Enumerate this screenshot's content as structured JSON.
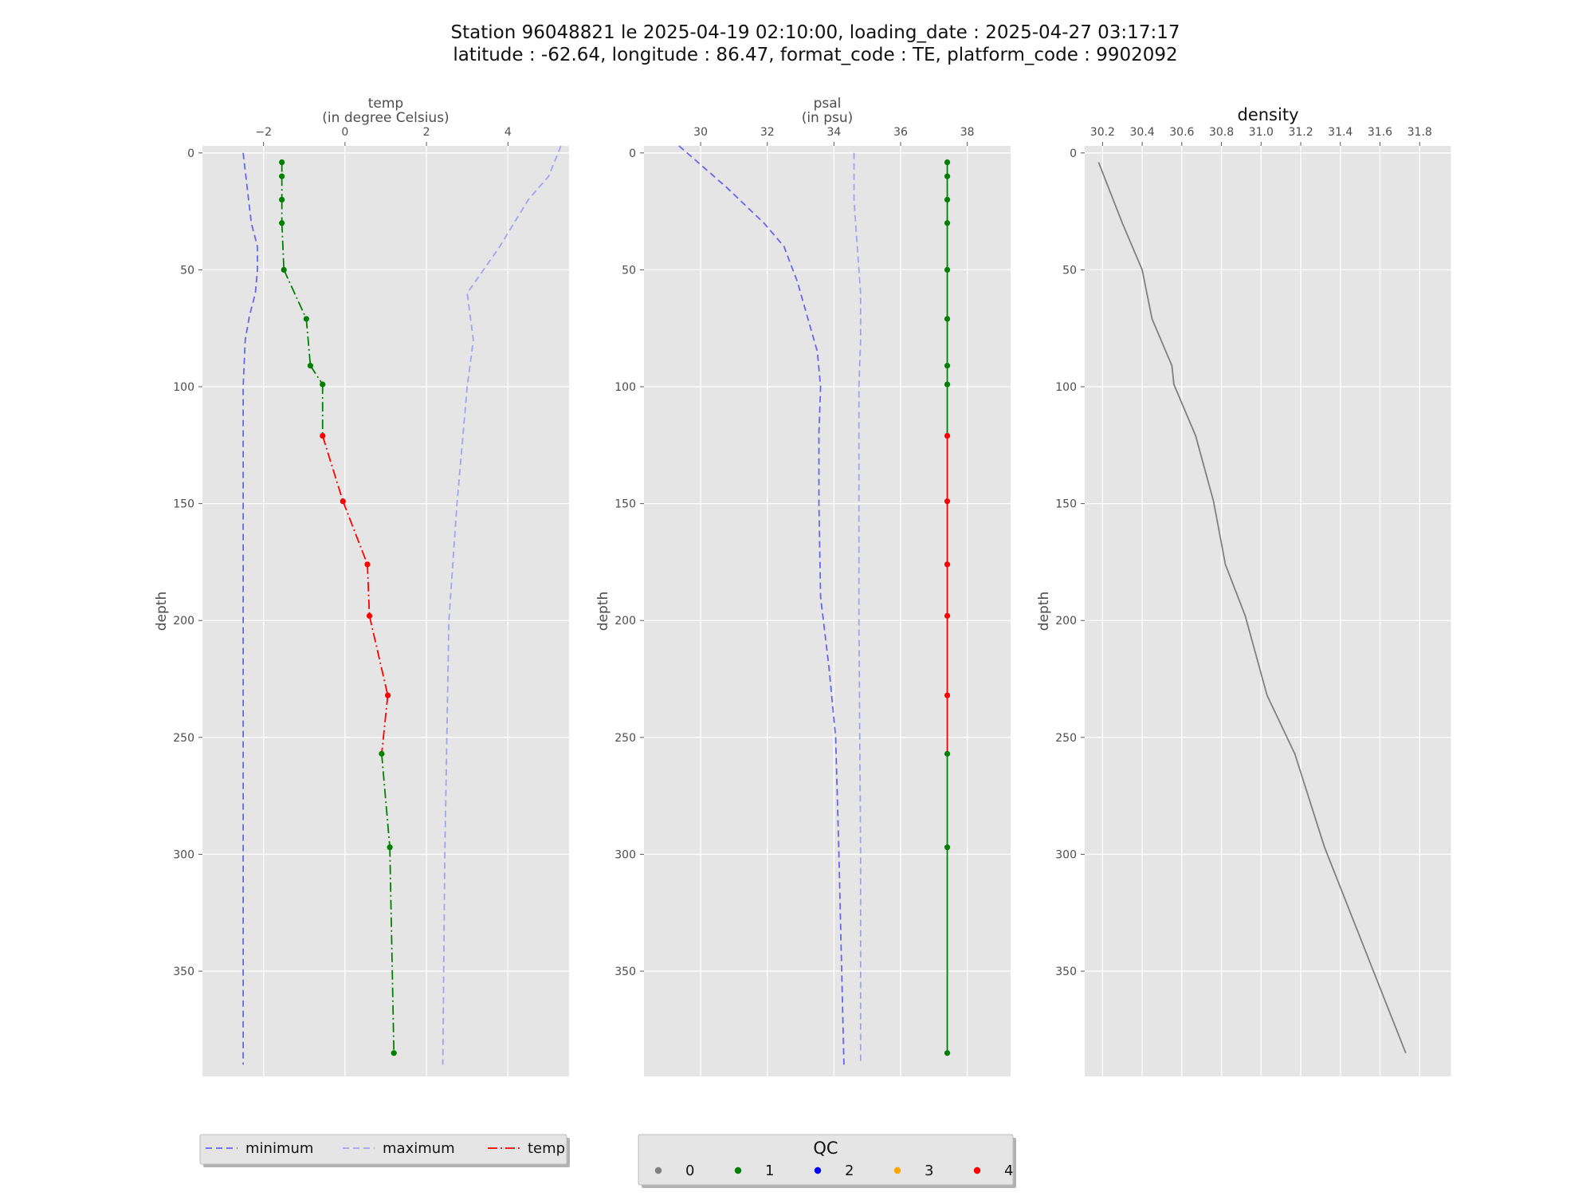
{
  "title_line1": "Station 96048821 le 2025-04-19 02:10:00, loading_date : 2025-04-27 03:17:17",
  "title_line2": "latitude : -62.64, longitude : 86.47, format_code : TE, platform_code : 9902092",
  "colors": {
    "panel_bg": "#e5e5e5",
    "grid": "#ffffff",
    "minimum": "#6666ee",
    "maximum": "#a3a3ee",
    "qc0": "#808080",
    "qc1": "#008000",
    "qc2": "#0000ff",
    "qc3": "#ffa500",
    "qc4": "#ff0000",
    "density_line": "#808080"
  },
  "chart_data": [
    {
      "type": "line",
      "name": "temp",
      "xlabel": "temp",
      "xlabel_unit": "(in degree Celsius)",
      "ylabel": "depth",
      "xlim": [
        -3.5,
        5.5
      ],
      "ylim": [
        395,
        -3
      ],
      "y_inverted": true,
      "xticks": [
        -2,
        0,
        2,
        4
      ],
      "xtick_labels": [
        "−2",
        "0",
        "2",
        "4"
      ],
      "yticks": [
        0,
        50,
        100,
        150,
        200,
        250,
        300,
        350
      ],
      "ytick_labels": [
        "0",
        "50",
        "100",
        "150",
        "200",
        "250",
        "300",
        "350"
      ],
      "grid": true,
      "minimum": {
        "x": [
          -2.5,
          -2.4,
          -2.3,
          -2.15,
          -2.15,
          -2.2,
          -2.35,
          -2.45,
          -2.5,
          -2.5,
          -2.5,
          -2.5,
          -2.5
        ],
        "y": [
          0,
          15,
          30,
          40,
          50,
          60,
          70,
          80,
          100,
          150,
          200,
          300,
          390
        ]
      },
      "maximum": {
        "x": [
          5.3,
          5.0,
          4.5,
          3.8,
          3.4,
          3.0,
          3.15,
          3.0,
          2.75,
          2.55,
          2.45,
          2.4
        ],
        "y": [
          -3,
          10,
          20,
          40,
          50,
          60,
          80,
          100,
          150,
          200,
          300,
          390
        ]
      },
      "points": {
        "depth": [
          4,
          10,
          20,
          30,
          50,
          71,
          91,
          99,
          121,
          149,
          176,
          198,
          232,
          257,
          297,
          385
        ],
        "value": [
          -1.55,
          -1.55,
          -1.55,
          -1.55,
          -1.5,
          -0.95,
          -0.85,
          -0.55,
          -0.55,
          -0.05,
          0.55,
          0.6,
          1.05,
          0.9,
          1.1,
          1.2
        ],
        "qc": [
          1,
          1,
          1,
          1,
          1,
          1,
          1,
          1,
          4,
          4,
          4,
          4,
          4,
          1,
          1,
          1
        ]
      }
    },
    {
      "type": "line",
      "name": "psal",
      "xlabel": "psal",
      "xlabel_unit": "(in psu)",
      "ylabel": "depth",
      "xlim": [
        28.3,
        39.3
      ],
      "ylim": [
        395,
        -3
      ],
      "y_inverted": true,
      "xticks": [
        30,
        32,
        34,
        36,
        38
      ],
      "xtick_labels": [
        "30",
        "32",
        "34",
        "36",
        "38"
      ],
      "yticks": [
        0,
        50,
        100,
        150,
        200,
        250,
        300,
        350
      ],
      "ytick_labels": [
        "0",
        "50",
        "100",
        "150",
        "200",
        "250",
        "300",
        "350"
      ],
      "grid": true,
      "minimum": {
        "x": [
          29.35,
          30.0,
          30.8,
          31.9,
          32.5,
          32.9,
          33.2,
          33.5,
          33.6,
          33.55,
          33.55,
          33.6,
          33.85,
          34.05,
          34.15,
          34.3
        ],
        "y": [
          -3,
          5,
          15,
          30,
          40,
          55,
          70,
          85,
          100,
          120,
          150,
          190,
          220,
          250,
          300,
          390
        ]
      },
      "maximum": {
        "x": [
          34.6,
          34.6,
          34.7,
          34.8,
          34.8,
          34.75,
          34.75,
          34.8,
          34.8
        ],
        "y": [
          0,
          20,
          40,
          60,
          80,
          100,
          200,
          300,
          390
        ]
      },
      "points": {
        "depth": [
          4,
          10,
          20,
          30,
          50,
          71,
          91,
          99,
          121,
          149,
          176,
          198,
          232,
          257,
          297,
          385
        ],
        "value": [
          37.4,
          37.4,
          37.4,
          37.4,
          37.4,
          37.4,
          37.4,
          37.4,
          37.4,
          37.4,
          37.4,
          37.4,
          37.4,
          37.4,
          37.4,
          37.4
        ],
        "qc": [
          1,
          1,
          1,
          1,
          1,
          1,
          1,
          1,
          4,
          4,
          4,
          4,
          4,
          1,
          1,
          1
        ]
      }
    },
    {
      "type": "line",
      "name": "density",
      "title": "density",
      "ylabel": "depth",
      "xlim": [
        30.11,
        31.96
      ],
      "ylim": [
        395,
        -3
      ],
      "y_inverted": true,
      "xticks": [
        30.2,
        30.4,
        30.6,
        30.8,
        31.0,
        31.2,
        31.4,
        31.6,
        31.8
      ],
      "xtick_labels": [
        "30.2",
        "30.4",
        "30.6",
        "30.8",
        "31.0",
        "31.2",
        "31.4",
        "31.6",
        "31.8"
      ],
      "yticks": [
        0,
        50,
        100,
        150,
        200,
        250,
        300,
        350
      ],
      "ytick_labels": [
        "0",
        "50",
        "100",
        "150",
        "200",
        "250",
        "300",
        "350"
      ],
      "grid": true,
      "series": {
        "depth": [
          4,
          30,
          50,
          71,
          91,
          99,
          121,
          149,
          176,
          198,
          232,
          257,
          297,
          385
        ],
        "value": [
          30.18,
          30.3,
          30.4,
          30.45,
          30.55,
          30.56,
          30.67,
          30.76,
          30.82,
          30.92,
          31.03,
          31.17,
          31.32,
          31.73
        ]
      }
    }
  ],
  "legend_lines": {
    "items": [
      {
        "label": "minimum",
        "color": "#6666ee",
        "dash": "8,5"
      },
      {
        "label": "maximum",
        "color": "#a3a3ee",
        "dash": "8,5"
      },
      {
        "label": "temp",
        "color": "#ff0000",
        "dash": "12,4,2,4"
      }
    ]
  },
  "legend_qc": {
    "title": "QC",
    "items": [
      {
        "label": "0",
        "color": "#808080"
      },
      {
        "label": "1",
        "color": "#008000"
      },
      {
        "label": "2",
        "color": "#0000ff"
      },
      {
        "label": "3",
        "color": "#ffa500"
      },
      {
        "label": "4",
        "color": "#ff0000"
      }
    ]
  }
}
